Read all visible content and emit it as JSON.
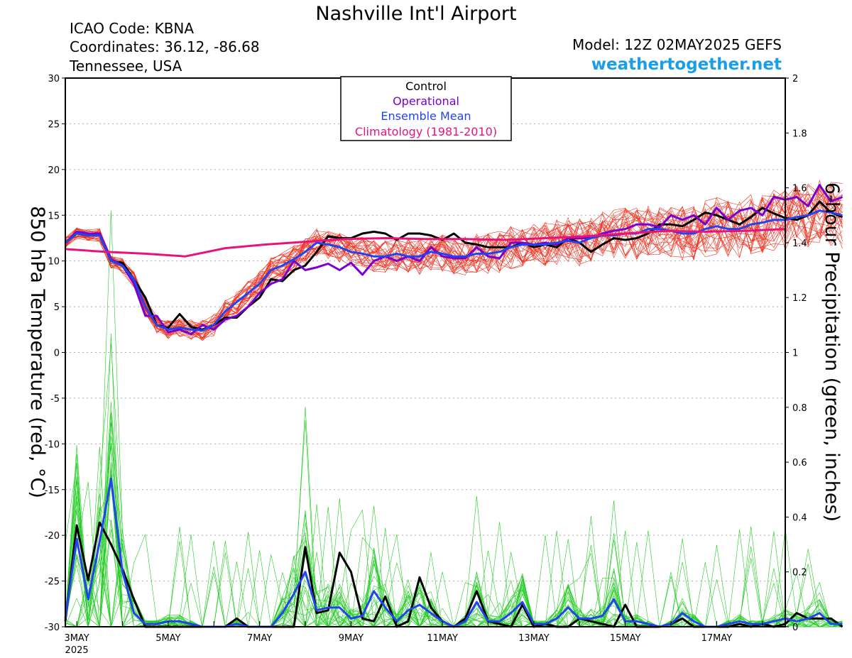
{
  "header": {
    "title": "Nashville Int'l Airport",
    "icao": "ICAO Code: KBNA",
    "coordinates": "Coordinates: 36.12, -86.68",
    "region": "Tennessee, USA",
    "model": "Model: 12Z 02MAY2025 GEFS",
    "site": "weathertogether.net"
  },
  "colors": {
    "members_temp": "#ee3322",
    "members_precip": "#22cc22",
    "control": "#000000",
    "operational": "#7a00d0",
    "ensemble_mean": "#2244ee",
    "climatology": "#e8137a"
  },
  "chart_data": {
    "type": "line",
    "xlabel": "",
    "ylabel": "850 hPa Temperature (red, °C)",
    "y2label": "6-hour Precipitation (green, inches)",
    "ylim": [
      -30,
      30
    ],
    "y2lim": [
      0,
      2
    ],
    "yticks": [
      "30",
      "25",
      "20",
      "15",
      "10",
      "5",
      "0",
      "-5",
      "-10",
      "-15",
      "-20",
      "-25",
      "-30"
    ],
    "y2ticks": [
      "2",
      "1.8",
      "1.6",
      "1.4",
      "1.2",
      "1",
      "0.8",
      "0.6",
      "0.4",
      "0.2",
      "0"
    ],
    "x_labels": [
      "3MAY",
      "5MAY",
      "7MAY",
      "9MAY",
      "11MAY",
      "13MAY",
      "15MAY",
      "17MAY"
    ],
    "x_label_days": [
      3,
      5,
      7,
      9,
      11,
      13,
      15,
      17
    ],
    "x_sublabel": "2025",
    "x_range_days": [
      2.75,
      18.5
    ],
    "grid": "horizontal dotted",
    "legend_position": "top-center",
    "legend": [
      "Control",
      "Operational",
      "Ensemble Mean",
      "Climatology (1981-2010)"
    ],
    "time_step_days": 0.25,
    "x_start_day": 2.75,
    "series": [
      {
        "name": "Control",
        "axis": "temperature",
        "values": [
          12,
          13,
          12.8,
          13,
          10,
          9.8,
          8,
          6,
          3,
          2.7,
          4.2,
          2.8,
          2.5,
          3,
          3.8,
          3.8,
          5,
          6,
          8,
          7.8,
          9,
          9.5,
          11,
          12.7,
          12.5,
          12.5,
          13,
          13.2,
          13,
          12.3,
          13,
          13,
          12.8,
          12.3,
          13,
          12,
          11.8,
          11.5,
          11.5,
          11.5,
          12,
          11.5,
          11.8,
          11.5,
          12.5,
          12,
          11,
          11.8,
          12.5,
          12.3,
          12.5,
          13,
          14,
          14,
          13.8,
          14.5,
          15.3,
          15,
          14.5,
          14,
          14.8,
          15.8,
          15.2,
          14.7,
          14.5,
          15,
          16.5,
          15.3,
          14.8
        ]
      },
      {
        "name": "Operational",
        "axis": "temperature",
        "values": [
          12,
          13.2,
          13,
          13,
          10.2,
          9.5,
          7.5,
          4,
          4,
          2.2,
          2.5,
          2,
          3,
          2.5,
          3.6,
          4,
          5,
          6.5,
          7.5,
          8,
          10,
          9,
          9.3,
          9.7,
          9,
          9.8,
          8.5,
          10,
          10.5,
          10,
          10.5,
          10,
          11.5,
          10.5,
          10.3,
          10.3,
          11.5,
          10.5,
          10.3,
          12,
          12,
          11.8,
          12,
          11.8,
          12.5,
          12.5,
          12.5,
          13,
          13.3,
          13.5,
          14,
          14,
          13.7,
          15,
          14.5,
          15,
          14,
          15.8,
          14.5,
          15.5,
          15.8,
          15,
          17,
          16.7,
          17,
          16,
          18.3,
          16.5,
          17
        ]
      },
      {
        "name": "Ensemble Mean",
        "axis": "temperature",
        "values": [
          12,
          13,
          12.8,
          12.8,
          10,
          9.5,
          8,
          5,
          3,
          2.5,
          2.7,
          2.5,
          2.4,
          3,
          4.5,
          5.5,
          6.5,
          7.5,
          9,
          9.5,
          10.2,
          11,
          12,
          11.8,
          11.5,
          11,
          10.8,
          10.5,
          10.5,
          10.8,
          10.5,
          10.5,
          11,
          10.8,
          10.5,
          10.5,
          10.8,
          10.8,
          11,
          11.5,
          11.8,
          11.8,
          11.8,
          12,
          12.2,
          12,
          12.5,
          12.8,
          12.8,
          13,
          13,
          13.5,
          13.5,
          13.3,
          13,
          13,
          13.5,
          13.8,
          13.5,
          13.5,
          14,
          14.2,
          14.5,
          14.5,
          14.8,
          15,
          15.5,
          15.3,
          15
        ]
      },
      {
        "name": "Climatology (1981-2010)",
        "axis": "temperature",
        "values": [
          11.3,
          11,
          10.8,
          10.5,
          11.4,
          11.8,
          12.1,
          12.4,
          12.5,
          12.4,
          12.4,
          12.3,
          12.5,
          12.7,
          13.0,
          13.3,
          13.2,
          13.3,
          13.5
        ]
      },
      {
        "name": "Control",
        "axis": "precipitation",
        "values": [
          0.02,
          0.37,
          0.17,
          0.38,
          0.3,
          0.21,
          0.1,
          0,
          0,
          0,
          0,
          0,
          0,
          0,
          0,
          0.03,
          0,
          0,
          0,
          0,
          0,
          0.29,
          0.05,
          0.06,
          0.27,
          0.2,
          0.03,
          0.02,
          0.11,
          0,
          0.02,
          0.18,
          0.07,
          0.02,
          0,
          0.03,
          0.13,
          0.02,
          0.01,
          0,
          0.08,
          0,
          0.01,
          0,
          0,
          0.03,
          0.02,
          0.01,
          0,
          0.08,
          0,
          0,
          0,
          0.01,
          0.03,
          0,
          0,
          0,
          0,
          0.01,
          0,
          0.01,
          0,
          0.01,
          0.05,
          0.03,
          0.03,
          0.03,
          0
        ]
      },
      {
        "name": "Ensemble Mean",
        "axis": "precipitation",
        "values": [
          0.03,
          0.32,
          0.1,
          0.31,
          0.54,
          0.2,
          0.05,
          0.01,
          0.01,
          0.02,
          0.02,
          0.01,
          0,
          0,
          0,
          0.01,
          0,
          0,
          0,
          0.05,
          0.12,
          0.2,
          0.06,
          0.07,
          0.07,
          0.03,
          0.04,
          0.13,
          0.07,
          0.02,
          0.06,
          0.08,
          0.05,
          0.02,
          0,
          0.02,
          0.09,
          0.02,
          0.02,
          0.05,
          0.09,
          0.01,
          0.01,
          0.03,
          0.07,
          0.03,
          0.03,
          0.04,
          0.1,
          0.02,
          0.02,
          0.01,
          0,
          0.01,
          0.05,
          0.02,
          0,
          0,
          0.01,
          0.02,
          0.01,
          0.01,
          0.02,
          0.03,
          0.02,
          0.03,
          0.05,
          0.01,
          0.01
        ]
      }
    ]
  }
}
